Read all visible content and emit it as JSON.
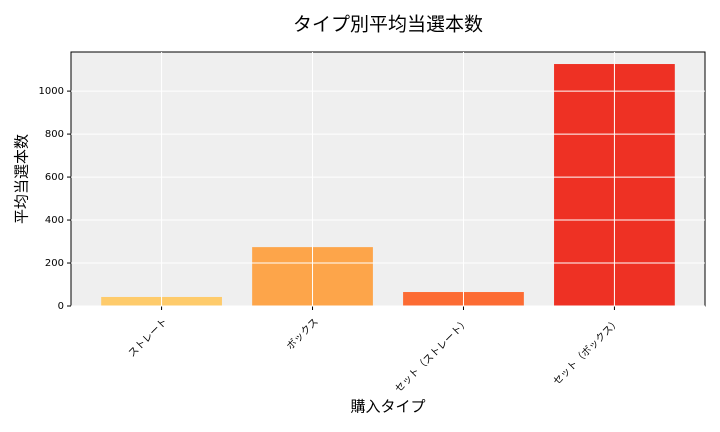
{
  "chart_data": {
    "type": "bar",
    "title": "タイプ別平均当選本数",
    "x_label": "購入タイプ",
    "y_label": "平均当選本数",
    "categories": [
      "ストレート",
      "ボックス",
      "セット（ストレート）",
      "セット（ボックス）"
    ],
    "values": [
      42,
      274,
      65,
      1126
    ],
    "colors": [
      "#fecb6b",
      "#fda54a",
      "#fc6b33",
      "#ee3124"
    ],
    "ylim": [
      0,
      1182
    ],
    "yticks": [
      0,
      200,
      400,
      600,
      800,
      1000
    ],
    "grid": true
  }
}
